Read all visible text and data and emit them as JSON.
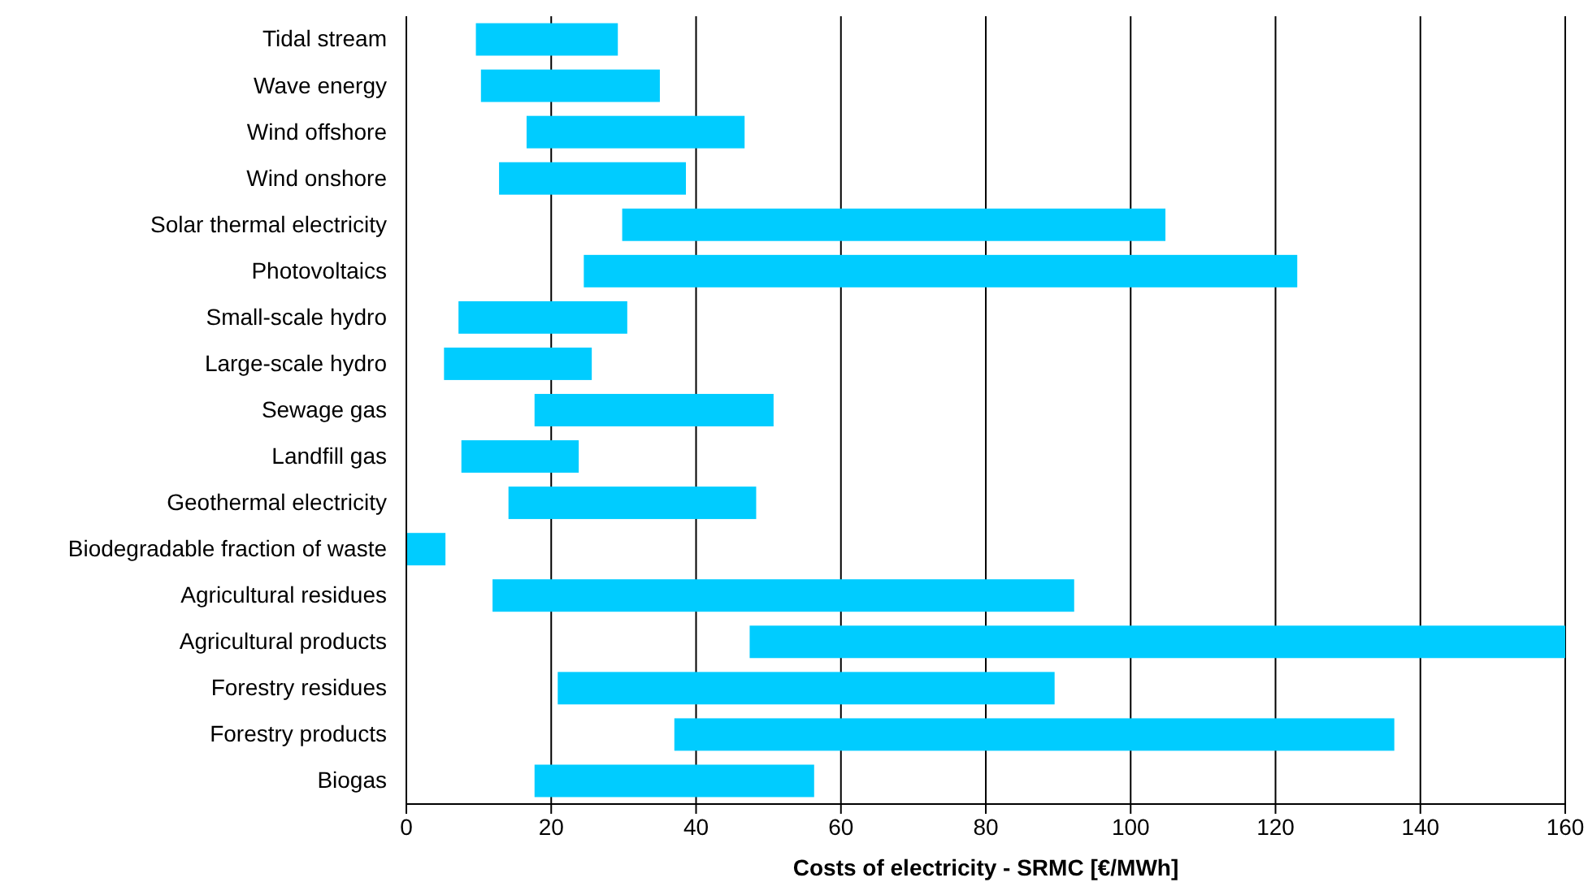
{
  "chart_data": {
    "type": "bar",
    "orientation": "horizontal",
    "xlabel": "Costs of electricity - SRMC [€/MWh]",
    "categories": [
      "Tidal stream",
      "Wave energy",
      "Wind offshore",
      "Wind onshore",
      "Solar thermal electricity",
      "Photovoltaics",
      "Small-scale hydro",
      "Large-scale hydro",
      "Sewage gas",
      "Landfill gas",
      "Geothermal electricity",
      "Biodegradable fraction of waste",
      "Agricultural residues",
      "Agricultural products",
      "Forestry residues",
      "Forestry products",
      "Biogas"
    ],
    "base": [
      9.6,
      10.3,
      16.6,
      12.8,
      29.8,
      24.5,
      7.2,
      5.2,
      17.7,
      7.6,
      14.1,
      0,
      11.9,
      47.4,
      20.9,
      37,
      17.7
    ],
    "values": [
      19.6,
      24.7,
      30.1,
      25.8,
      75,
      98.5,
      23.3,
      20.4,
      33,
      16.2,
      34.2,
      5.4,
      80.3,
      112.6,
      68.6,
      99.4,
      38.6
    ],
    "color": "#00ccff",
    "xlim": [
      0,
      160
    ],
    "xticks": [
      0,
      20,
      40,
      60,
      80,
      100,
      120,
      140,
      160
    ],
    "grid": "x"
  }
}
